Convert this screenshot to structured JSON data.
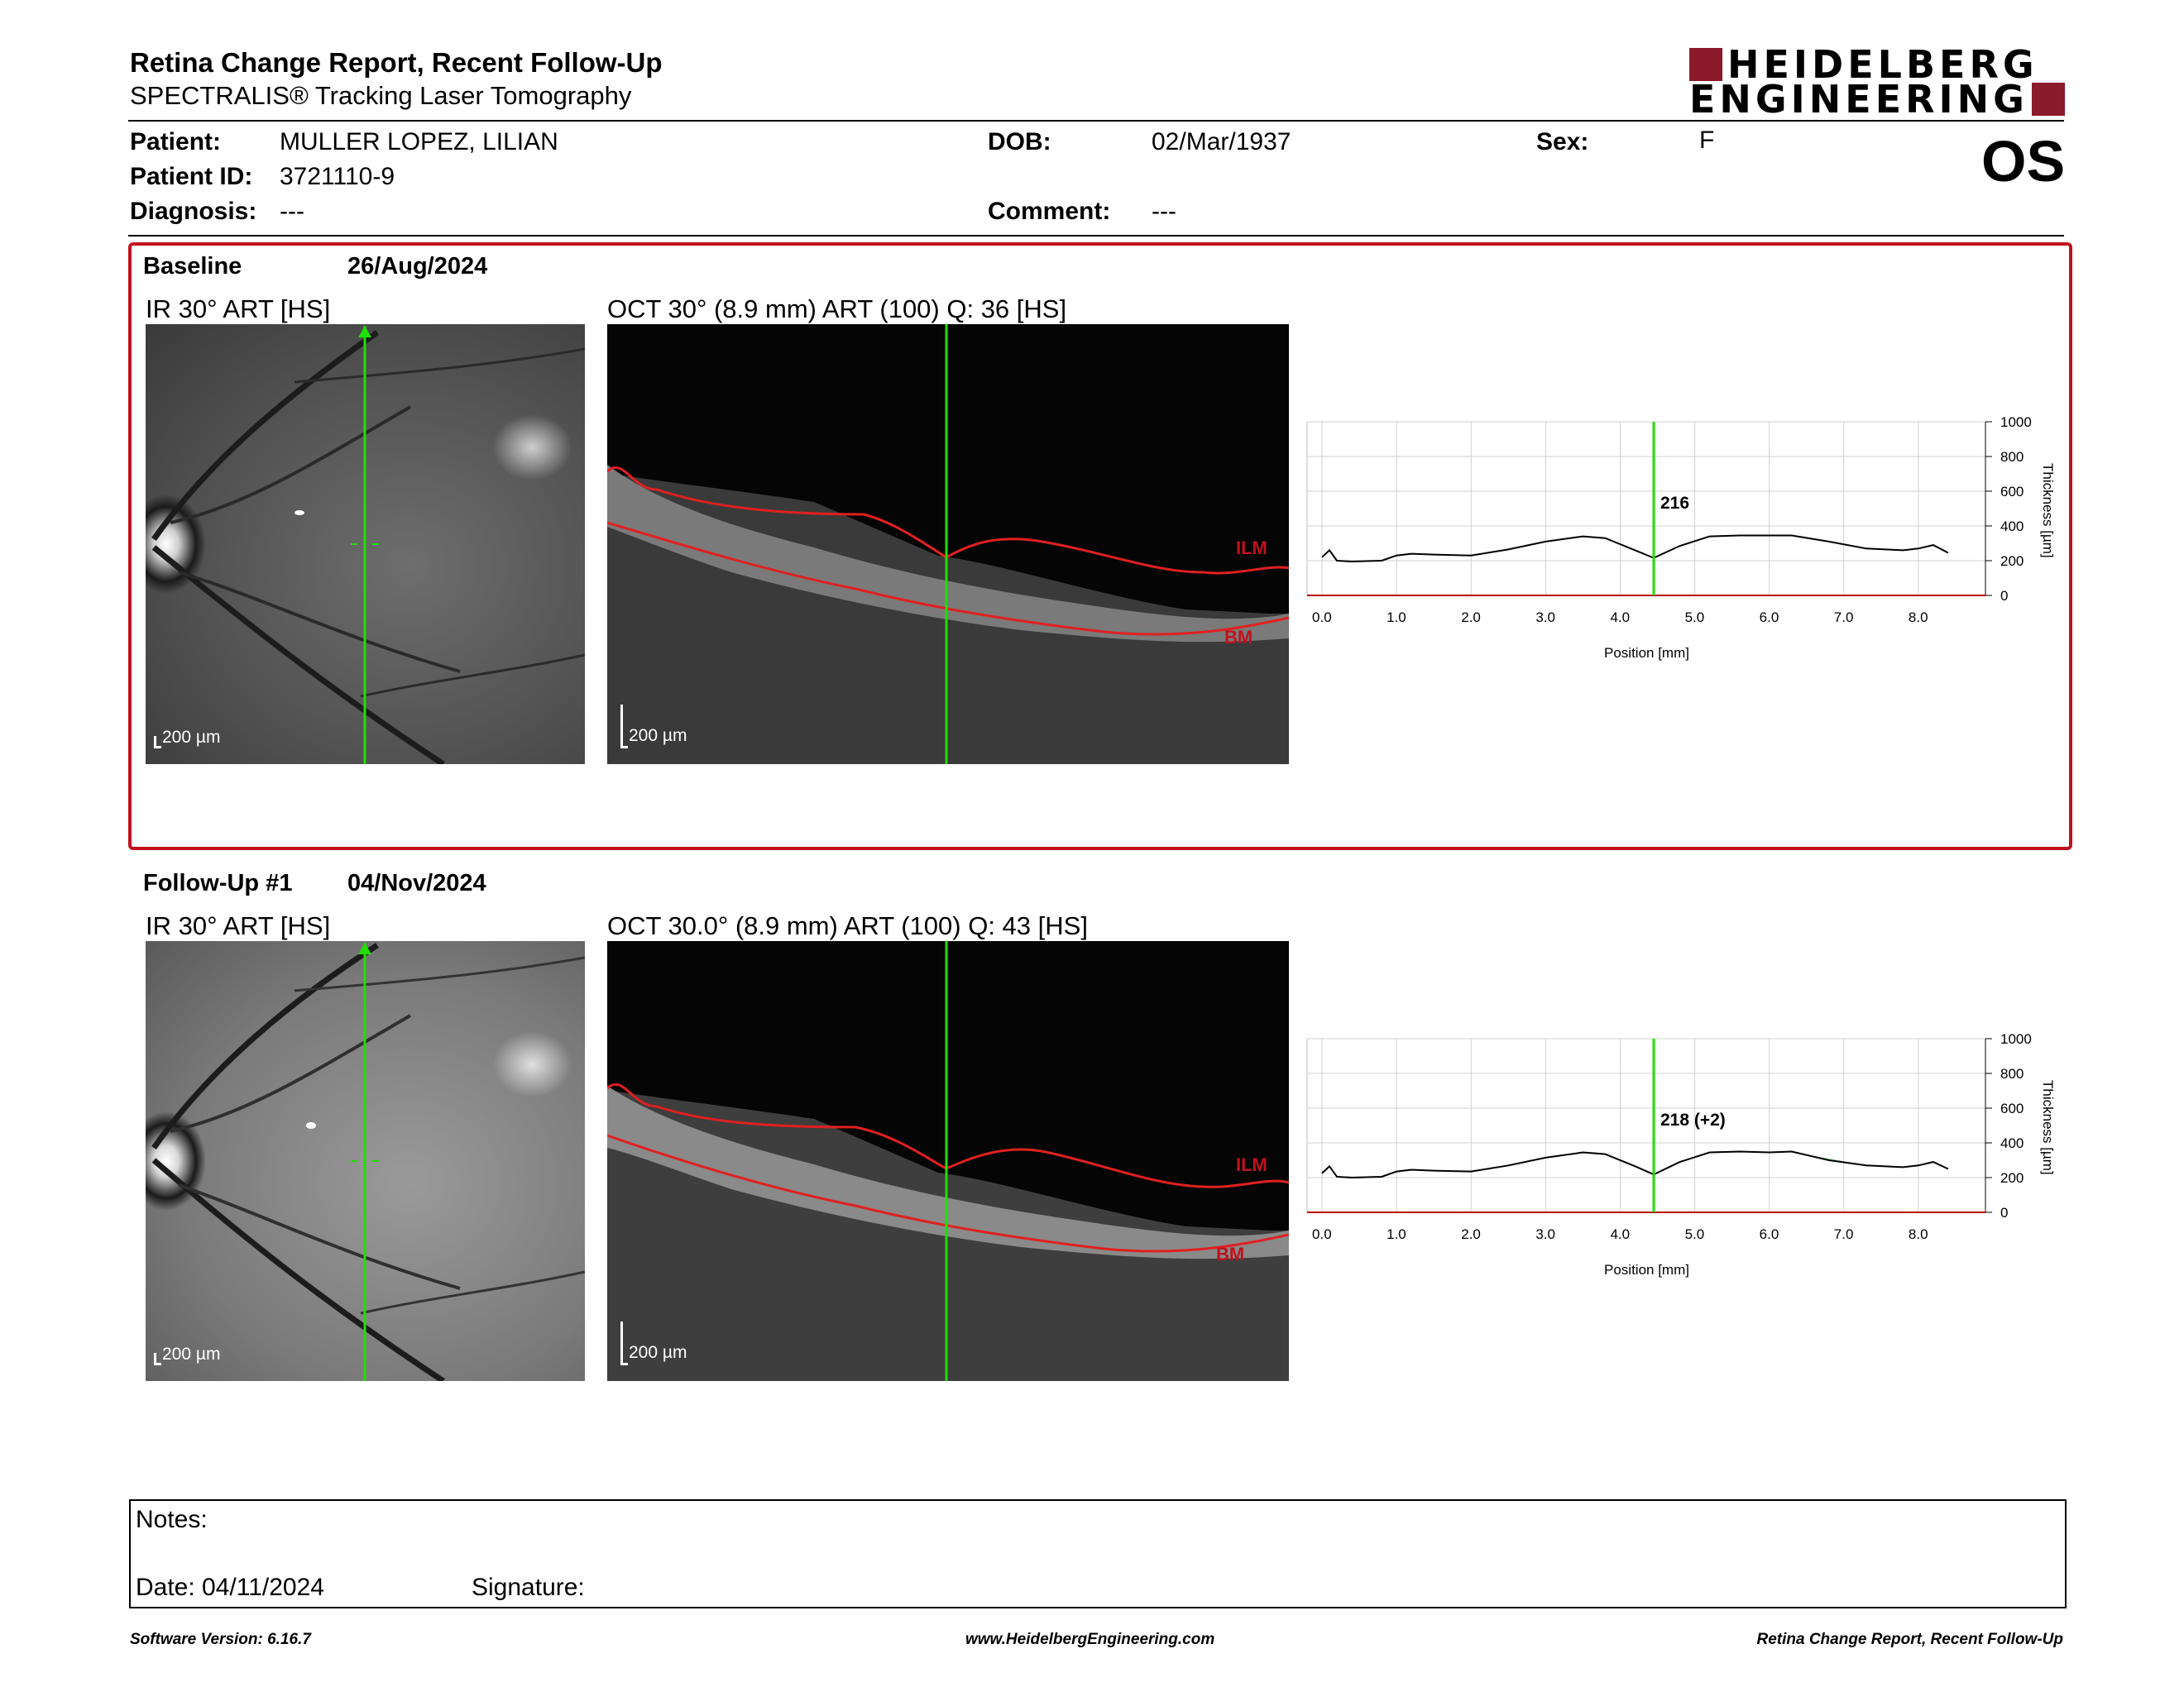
{
  "header": {
    "title": "Retina Change Report, Recent Follow-Up",
    "subtitle": "SPECTRALIS® Tracking Laser Tomography",
    "logo_line1": "HEIDELBERG",
    "logo_line2": "ENGINEERING",
    "brand_color": "#8b1a2b"
  },
  "patient": {
    "patient_label": "Patient:",
    "patient_value": "MULLER LOPEZ, LILIAN",
    "id_label": "Patient ID:",
    "id_value": "3721110-9",
    "diagnosis_label": "Diagnosis:",
    "diagnosis_value": "---",
    "dob_label": "DOB:",
    "dob_value": "02/Mar/1937",
    "comment_label": "Comment:",
    "comment_value": "---",
    "sex_label": "Sex:",
    "sex_value": "F",
    "eye": "OS"
  },
  "baseline": {
    "title": "Baseline",
    "date": "26/Aug/2024",
    "ir_label": "IR 30° ART [HS]",
    "oct_label": "OCT 30° (8.9 mm) ART (100) Q: 36 [HS]",
    "scale": "200 µm",
    "ilm": "ILM",
    "bm": "BM",
    "marker_value": "216"
  },
  "followup": {
    "title": "Follow-Up #1",
    "date": "04/Nov/2024",
    "ir_label": "IR 30° ART [HS]",
    "oct_label": "OCT 30.0° (8.9 mm) ART (100) Q: 43 [HS]",
    "scale": "200 µm",
    "ilm": "ILM",
    "bm": "BM",
    "marker_value": "218 (+2)"
  },
  "chart_data": [
    {
      "type": "line",
      "xlabel": "Position [mm]",
      "ylabel": "Thickness [µm]",
      "xlim": [
        -0.2,
        8.9
      ],
      "ylim": [
        0,
        1000
      ],
      "x_ticks": [
        "0.0",
        "1.0",
        "2.0",
        "3.0",
        "4.0",
        "5.0",
        "6.0",
        "7.0",
        "8.0"
      ],
      "y_ticks": [
        "1000",
        "800",
        "600",
        "400",
        "200",
        "0"
      ],
      "marker_x": 4.45,
      "marker_label": "216",
      "x": [
        0.0,
        0.1,
        0.2,
        0.4,
        0.8,
        1.0,
        1.2,
        1.5,
        2.0,
        2.5,
        3.0,
        3.5,
        3.8,
        4.2,
        4.45,
        4.8,
        5.2,
        5.6,
        6.0,
        6.3,
        6.8,
        7.3,
        7.8,
        8.0,
        8.2,
        8.4
      ],
      "y": [
        220,
        260,
        200,
        195,
        200,
        230,
        240,
        235,
        230,
        265,
        310,
        340,
        330,
        260,
        216,
        285,
        340,
        345,
        345,
        345,
        310,
        270,
        260,
        270,
        290,
        245
      ]
    },
    {
      "type": "line",
      "xlabel": "Position [mm]",
      "ylabel": "Thickness [µm]",
      "xlim": [
        -0.2,
        8.9
      ],
      "ylim": [
        0,
        1000
      ],
      "x_ticks": [
        "0.0",
        "1.0",
        "2.0",
        "3.0",
        "4.0",
        "5.0",
        "6.0",
        "7.0",
        "8.0"
      ],
      "y_ticks": [
        "1000",
        "800",
        "600",
        "400",
        "200",
        "0"
      ],
      "marker_x": 4.45,
      "marker_label": "218 (+2)",
      "x": [
        0.0,
        0.1,
        0.2,
        0.4,
        0.8,
        1.0,
        1.2,
        1.5,
        2.0,
        2.5,
        3.0,
        3.5,
        3.8,
        4.2,
        4.45,
        4.8,
        5.2,
        5.6,
        6.0,
        6.3,
        6.8,
        7.3,
        7.8,
        8.0,
        8.2,
        8.4
      ],
      "y": [
        225,
        265,
        205,
        200,
        205,
        235,
        245,
        240,
        235,
        270,
        315,
        345,
        335,
        265,
        218,
        290,
        345,
        350,
        345,
        350,
        300,
        270,
        260,
        270,
        290,
        250
      ],
      "baseline_y": [
        220,
        260,
        200,
        195,
        200,
        230,
        240,
        235,
        230,
        265,
        310,
        340,
        330,
        260,
        216,
        285,
        340,
        345,
        345,
        345,
        310,
        270,
        260,
        270,
        290,
        245
      ]
    }
  ],
  "notes": {
    "notes_label": "Notes:",
    "date_label": "Date: 04/11/2024",
    "signature_label": "Signature:"
  },
  "footer": {
    "software": "Software Version: 6.16.7",
    "website": "www.HeidelbergEngineering.com",
    "report": "Retina Change Report, Recent Follow-Up"
  }
}
